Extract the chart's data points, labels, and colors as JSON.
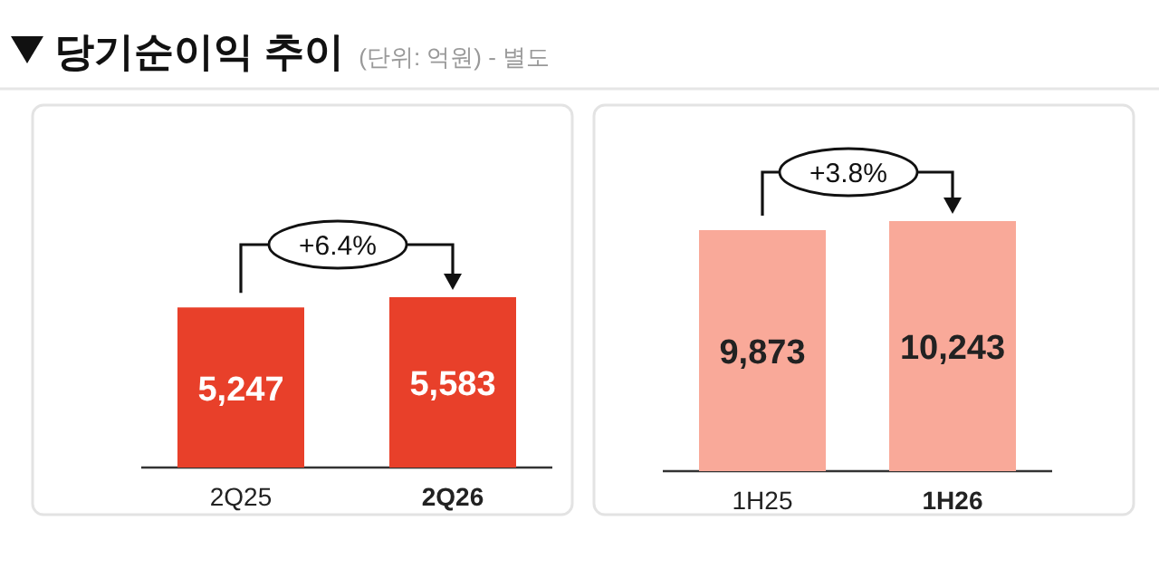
{
  "chart_data": [
    {
      "type": "bar",
      "title": "당기순이익 추이",
      "subtitle": "(단위: 억원) - 별도",
      "categories": [
        "2Q25",
        "2Q26"
      ],
      "values": [
        5247,
        5583
      ],
      "value_labels": [
        "5,247",
        "5,583"
      ],
      "color": "#e8402a",
      "annotations": [
        "+6.4%"
      ]
    },
    {
      "type": "bar",
      "categories": [
        "1H25",
        "1H26"
      ],
      "values": [
        9873,
        10243
      ],
      "value_labels": [
        "9,873",
        "10,243"
      ],
      "color": "#f9a999",
      "annotations": [
        "+3.8%"
      ]
    }
  ]
}
